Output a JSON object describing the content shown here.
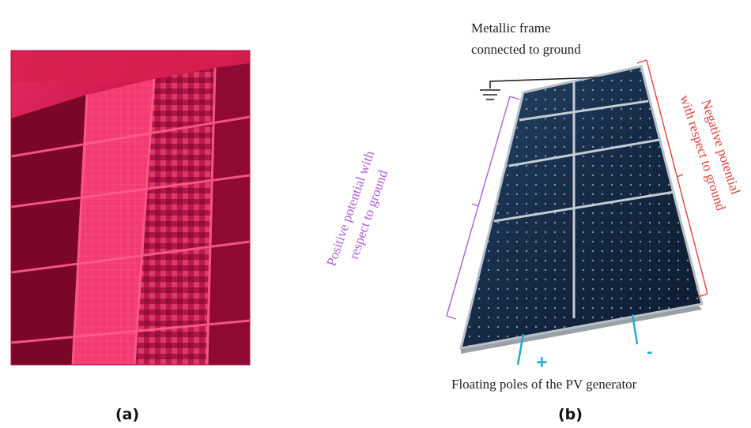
{
  "panel_a": {
    "label": "(a)"
  },
  "panel_b": {
    "label": "(b)",
    "frame_label_line1": "Metallic frame",
    "frame_label_line2": "connected to ground",
    "positive_label_line1": "Positive potential with",
    "positive_label_line2": "respect to ground",
    "negative_label_line1": "Negative potential",
    "negative_label_line2": "with respect to ground",
    "floating_label": "Floating poles of the PV generator",
    "plus_sign": "+",
    "minus_sign": "-"
  },
  "colors": {
    "thermal_red": "#e8104a",
    "positive_purple": "#b25cd6",
    "negative_red": "#e0413a",
    "pole_blue": "#1aa7d9",
    "panel_blue": "#16243a"
  }
}
